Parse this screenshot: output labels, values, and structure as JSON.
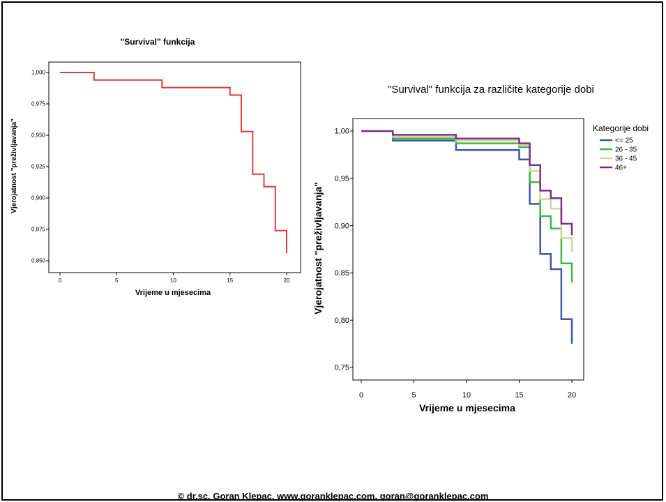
{
  "footer": "© dr.sc. Goran Klepac, www.goranklepac.com, goran@goranklepac.com",
  "chart_data": [
    {
      "type": "line",
      "step": true,
      "title": "\"Survival\" funkcija",
      "xlabel": "Vrijeme u mjesecima",
      "ylabel": "Vjerojatnost \"preživljavanja\"",
      "xlim": [
        0,
        20
      ],
      "ylim": [
        0.85,
        1.0
      ],
      "x_ticks": [
        0,
        5,
        10,
        15,
        20
      ],
      "x_tick_labels": [
        "0",
        "5",
        "10",
        "15",
        "20"
      ],
      "y_ticks": [
        0.85,
        0.875,
        0.9,
        0.925,
        0.95,
        0.975,
        1.0
      ],
      "y_tick_labels": [
        "0,850",
        "0,875",
        "0,900",
        "0,925",
        "0,950",
        "0,975",
        "1,000"
      ],
      "grid": false,
      "series": [
        {
          "color": "#e03c3c",
          "points": [
            [
              0,
              1.0
            ],
            [
              3,
              1.0
            ],
            [
              3,
              0.994
            ],
            [
              9,
              0.994
            ],
            [
              9,
              0.988
            ],
            [
              15,
              0.988
            ],
            [
              15,
              0.982
            ],
            [
              16,
              0.982
            ],
            [
              16,
              0.953
            ],
            [
              17,
              0.953
            ],
            [
              17,
              0.919
            ],
            [
              18,
              0.919
            ],
            [
              18,
              0.909
            ],
            [
              19,
              0.909
            ],
            [
              19,
              0.874
            ],
            [
              20,
              0.874
            ],
            [
              20,
              0.856
            ]
          ]
        }
      ]
    },
    {
      "type": "line",
      "step": true,
      "title": "\"Survival\" funkcija za različite kategorije dobi",
      "xlabel": "Vrijeme u mjesecima",
      "ylabel": "Vjerojatnost \"preživljavanja\"",
      "xlim": [
        0,
        20
      ],
      "ylim": [
        0.75,
        1.0
      ],
      "x_ticks": [
        0,
        5,
        10,
        15,
        20
      ],
      "x_tick_labels": [
        "0",
        "5",
        "10",
        "15",
        "20"
      ],
      "y_ticks": [
        0.75,
        0.8,
        0.85,
        0.9,
        0.95,
        1.0
      ],
      "y_tick_labels": [
        "0,75",
        "0,80",
        "0,85",
        "0,90",
        "0,95",
        "1,00"
      ],
      "grid": false,
      "legend_title": "Kategorije dobi",
      "legend_position": "right",
      "series": [
        {
          "name": "<= 25",
          "color": "#3f55a8",
          "points": [
            [
              0,
              1.0
            ],
            [
              3,
              1.0
            ],
            [
              3,
              0.99
            ],
            [
              9,
              0.99
            ],
            [
              9,
              0.98
            ],
            [
              15,
              0.98
            ],
            [
              15,
              0.97
            ],
            [
              16,
              0.97
            ],
            [
              16,
              0.923
            ],
            [
              17,
              0.923
            ],
            [
              17,
              0.87
            ],
            [
              18,
              0.87
            ],
            [
              18,
              0.854
            ],
            [
              19,
              0.854
            ],
            [
              19,
              0.801
            ],
            [
              20,
              0.801
            ],
            [
              20,
              0.775
            ]
          ]
        },
        {
          "name": "26 - 35",
          "color": "#3fb845",
          "points": [
            [
              0,
              1.0
            ],
            [
              3,
              1.0
            ],
            [
              3,
              0.992
            ],
            [
              9,
              0.992
            ],
            [
              9,
              0.987
            ],
            [
              15,
              0.987
            ],
            [
              15,
              0.983
            ],
            [
              16,
              0.983
            ],
            [
              16,
              0.946
            ],
            [
              17,
              0.946
            ],
            [
              17,
              0.91
            ],
            [
              18,
              0.91
            ],
            [
              18,
              0.897
            ],
            [
              19,
              0.897
            ],
            [
              19,
              0.86
            ],
            [
              20,
              0.86
            ],
            [
              20,
              0.84
            ]
          ]
        },
        {
          "name": "36 - 45",
          "color": "#d8d5a0",
          "points": [
            [
              0,
              1.0
            ],
            [
              3,
              1.0
            ],
            [
              3,
              0.994
            ],
            [
              9,
              0.994
            ],
            [
              9,
              0.99
            ],
            [
              15,
              0.99
            ],
            [
              15,
              0.985
            ],
            [
              16,
              0.985
            ],
            [
              16,
              0.958
            ],
            [
              17,
              0.958
            ],
            [
              17,
              0.928
            ],
            [
              18,
              0.928
            ],
            [
              18,
              0.918
            ],
            [
              19,
              0.918
            ],
            [
              19,
              0.887
            ],
            [
              20,
              0.887
            ],
            [
              20,
              0.872
            ]
          ]
        },
        {
          "name": "46+",
          "color": "#7a2e8a",
          "points": [
            [
              0,
              1.0
            ],
            [
              3,
              1.0
            ],
            [
              3,
              0.996
            ],
            [
              9,
              0.996
            ],
            [
              9,
              0.992
            ],
            [
              15,
              0.992
            ],
            [
              15,
              0.987
            ],
            [
              16,
              0.987
            ],
            [
              16,
              0.964
            ],
            [
              17,
              0.964
            ],
            [
              17,
              0.937
            ],
            [
              18,
              0.937
            ],
            [
              18,
              0.929
            ],
            [
              19,
              0.929
            ],
            [
              19,
              0.902
            ],
            [
              20,
              0.902
            ],
            [
              20,
              0.89
            ]
          ]
        }
      ]
    }
  ]
}
